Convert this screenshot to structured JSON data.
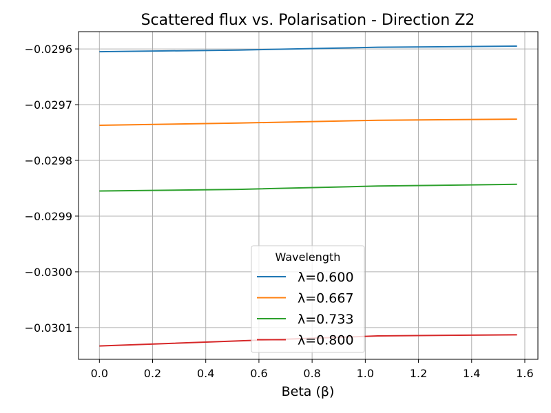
{
  "chart_data": {
    "type": "line",
    "title": "Scattered flux vs. Polarisation - Direction Z2",
    "xlabel": "Beta (β)",
    "ylabel": "",
    "xlim": [
      -0.0785,
      1.6493
    ],
    "ylim": [
      -0.030157,
      -0.029569
    ],
    "xticks": [
      0.0,
      0.2,
      0.4,
      0.6,
      0.8,
      1.0,
      1.2,
      1.4,
      1.6
    ],
    "xtick_labels": [
      "0.0",
      "0.2",
      "0.4",
      "0.6",
      "0.8",
      "1.0",
      "1.2",
      "1.4",
      "1.6"
    ],
    "yticks": [
      -0.0296,
      -0.0297,
      -0.0298,
      -0.0299,
      -0.03,
      -0.0301
    ],
    "ytick_labels": [
      "−0.0296",
      "−0.0297",
      "−0.0298",
      "−0.0299",
      "−0.0300",
      "−0.0301"
    ],
    "grid": true,
    "legend": {
      "title": "Wavelength",
      "position": "bottom-center"
    },
    "x": [
      0.0,
      0.5236,
      1.0472,
      1.5708
    ],
    "series": [
      {
        "name": "λ=0.600",
        "color": "#1f77b4",
        "values": [
          -0.029605,
          -0.029602,
          -0.029597,
          -0.029595
        ]
      },
      {
        "name": "λ=0.667",
        "color": "#ff7f0e",
        "values": [
          -0.029737,
          -0.029733,
          -0.029728,
          -0.029726
        ]
      },
      {
        "name": "λ=0.733",
        "color": "#2ca02c",
        "values": [
          -0.029855,
          -0.029852,
          -0.029846,
          -0.029843
        ]
      },
      {
        "name": "λ=0.800",
        "color": "#d62728",
        "values": [
          -0.030133,
          -0.030124,
          -0.030115,
          -0.030113
        ]
      }
    ]
  }
}
